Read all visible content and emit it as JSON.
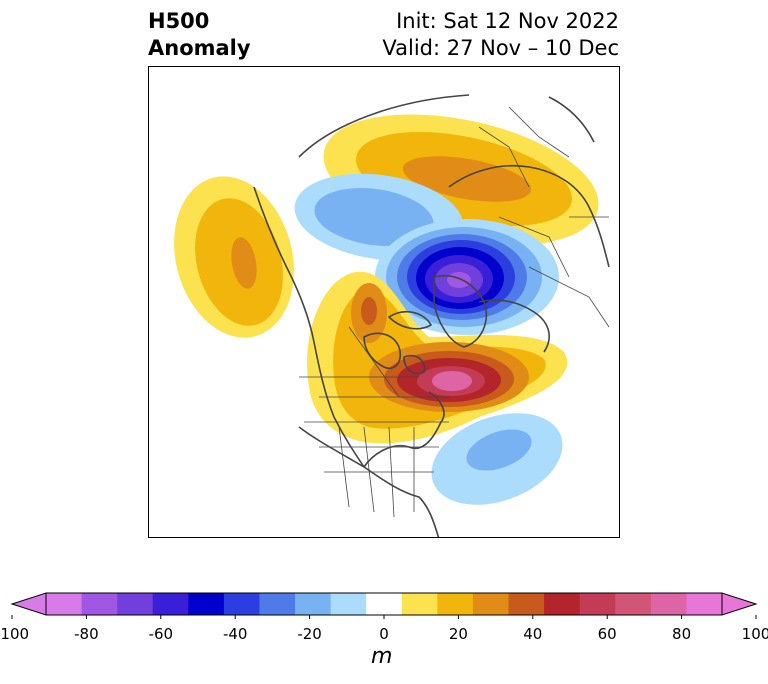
{
  "header": {
    "field_line1": "H500",
    "field_line2": "Anomaly",
    "init_label": "Init: Sat 12 Nov 2022",
    "valid_label": "Valid: 27 Nov – 10 Dec"
  },
  "map": {
    "projection": "polar-stereographic-north",
    "features": [
      "coastlines",
      "country-borders",
      "us-state-borders"
    ]
  },
  "colorbar": {
    "min": -100,
    "max": 100,
    "step": 10,
    "extend": "both",
    "colors": [
      "#d77be8",
      "#a057e3",
      "#7140dc",
      "#3a1fd8",
      "#0000cc",
      "#2b3fe0",
      "#4f7be8",
      "#79b2f2",
      "#acdcfb",
      "#ffffff",
      "#fce24e",
      "#f2b50b",
      "#e08c17",
      "#c85a1c",
      "#b3252a",
      "#c33b55",
      "#d05577",
      "#dd65a5",
      "#e875d8"
    ],
    "under_color": "#d77be8",
    "over_color": "#e875d8",
    "ticks": [
      "-100",
      "-80",
      "-60",
      "-40",
      "-20",
      "0",
      "20",
      "40",
      "60",
      "80",
      "100"
    ],
    "unit": "m"
  },
  "anomaly_centers": [
    {
      "name": "siberia-ridge",
      "max": 35
    },
    {
      "name": "alaska-ridge",
      "max": 35
    },
    {
      "name": "canada-ridge",
      "max": 95
    },
    {
      "name": "eurasia-arctic-trough",
      "min": -85
    },
    {
      "name": "atlantic-trough",
      "min": -30
    }
  ]
}
